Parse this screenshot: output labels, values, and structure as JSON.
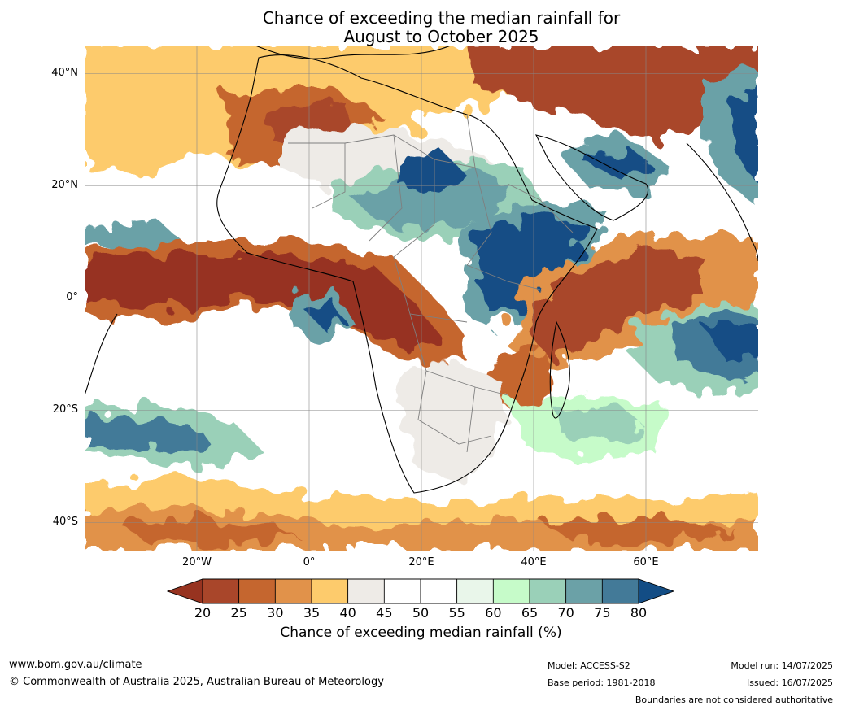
{
  "title": {
    "line1": "Chance of exceeding the median rainfall for",
    "line2": "August to October 2025"
  },
  "map": {
    "lat_labels": [
      "40°N",
      "20°N",
      "0°",
      "20°S",
      "40°S"
    ],
    "lon_labels": [
      "20°W",
      "0°",
      "20°E",
      "40°E",
      "60°E"
    ],
    "lat_values": [
      40,
      20,
      0,
      -20,
      -40
    ],
    "lon_values": [
      -20,
      0,
      20,
      40,
      60
    ],
    "extent": {
      "lon_min": -40,
      "lon_max": 80,
      "lat_min": -45,
      "lat_max": 45
    }
  },
  "colorbar": {
    "label": "Chance of exceeding median rainfall (%)",
    "ticks": [
      "20",
      "25",
      "30",
      "35",
      "40",
      "45",
      "50",
      "55",
      "60",
      "65",
      "70",
      "75",
      "80"
    ],
    "colors": [
      "#973320",
      "#a9462a",
      "#c5662f",
      "#e1924a",
      "#fdcb6c",
      "#eeebe7",
      "#ffffff",
      "#ffffff",
      "#e9f6ea",
      "#c6fbc9",
      "#9ad0b8",
      "#6ba1a7",
      "#437a98"
    ],
    "under_color": "#973320",
    "over_color": "#134d85"
  },
  "footer": {
    "website": "www.bom.gov.au/climate",
    "copyright": "© Commonwealth of Australia 2025, Australian Bureau of Meteorology",
    "model": "Model: ACCESS-S2",
    "base_period": "Base period: 1981-2018",
    "model_run": "Model run: 14/07/2025",
    "issued": "Issued: 16/07/2025",
    "disclaimer": "Boundaries are not considered authoritative"
  }
}
